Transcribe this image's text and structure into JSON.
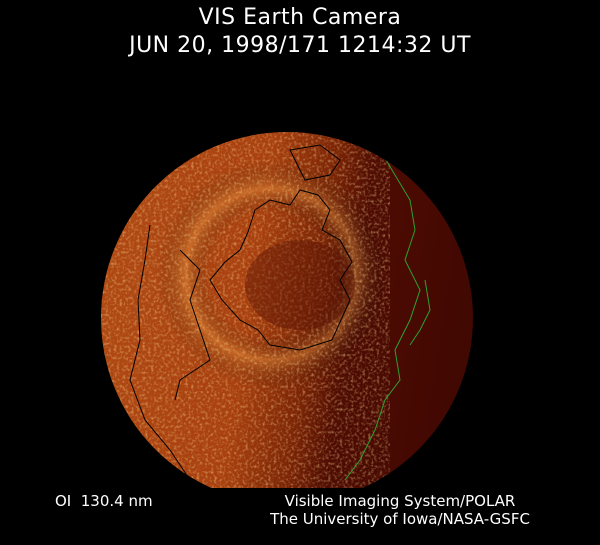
{
  "header": {
    "title": "VIS Earth Camera",
    "timestamp": "JUN 20, 1998/171 1214:32 UT"
  },
  "footer": {
    "wavelength": "OI  130.4 nm",
    "instrument": "Visible Imaging System/POLAR",
    "institution": "The University of Iowa/NASA-GSFC"
  },
  "image": {
    "subject": "earth-disk",
    "colors": {
      "dayside": "#c8581a",
      "nightside": "#4a0a02",
      "bright_aurora": "#f0a040",
      "night_coastline": "#2fa02f",
      "day_coastline": "#000000"
    }
  }
}
